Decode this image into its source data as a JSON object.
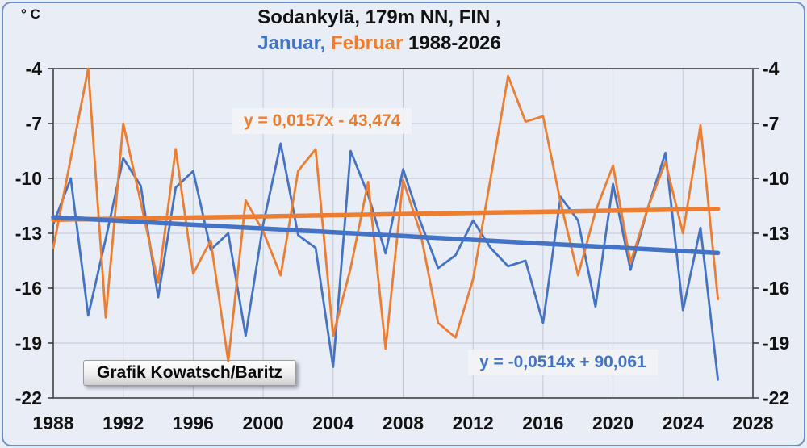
{
  "units_label": "° C",
  "title": {
    "line1": "Sodankylä, 179m NN, FIN ,",
    "part_januar": "Januar,",
    "part_februar": "Februar",
    "part_years": " 1988-2026"
  },
  "equations": {
    "februar": "y = 0,0157x - 43,474",
    "januar": "y = -0,0514x + 90,061"
  },
  "credit_label": "Grafik Kowatsch/Baritz",
  "colors": {
    "januar": "#4472C4",
    "februar": "#ED7D31",
    "background": "#E9EDF6",
    "grid": "#C3C8D2",
    "plot_border": "#3F3F3F",
    "text": "#121212",
    "frame": "#6C8FCB"
  },
  "chart_data": {
    "type": "line",
    "title": "Sodankylä, 179m NN, FIN , Januar, Februar 1988-2026",
    "ylabel": "° C",
    "xlabel": "",
    "grid": true,
    "legend_position": "none",
    "xlim": [
      1988,
      2028
    ],
    "ylim": [
      -22,
      -4
    ],
    "x_ticks": [
      1988,
      1992,
      1996,
      2000,
      2004,
      2008,
      2012,
      2016,
      2020,
      2024,
      2028
    ],
    "y_ticks": [
      -4,
      -7,
      -10,
      -13,
      -16,
      -19,
      -22
    ],
    "x": [
      1988,
      1989,
      1990,
      1991,
      1992,
      1993,
      1994,
      1995,
      1996,
      1997,
      1998,
      1999,
      2000,
      2001,
      2002,
      2003,
      2004,
      2005,
      2006,
      2007,
      2008,
      2009,
      2010,
      2011,
      2012,
      2013,
      2014,
      2015,
      2016,
      2017,
      2018,
      2019,
      2020,
      2021,
      2022,
      2023,
      2024,
      2025,
      2026
    ],
    "series": [
      {
        "name": "Januar",
        "color": "#4472C4",
        "values": [
          -12.5,
          -10.0,
          -17.5,
          -13.3,
          -8.9,
          -10.4,
          -16.5,
          -10.5,
          -9.6,
          -13.9,
          -13.0,
          -18.6,
          -12.5,
          -8.1,
          -13.1,
          -13.8,
          -20.3,
          -8.5,
          -10.9,
          -14.1,
          -9.5,
          -12.4,
          -14.9,
          -14.2,
          -12.3,
          -13.8,
          -14.8,
          -14.5,
          -17.9,
          -11.0,
          -12.3,
          -17.0,
          -10.3,
          -15.0,
          -11.6,
          -8.6,
          -17.2,
          -12.7,
          -21.0
        ]
      },
      {
        "name": "Februar",
        "color": "#ED7D31",
        "values": [
          -13.8,
          -8.9,
          -4.0,
          -17.6,
          -7.0,
          -11.3,
          -15.7,
          -8.4,
          -15.2,
          -13.4,
          -20.0,
          -11.2,
          -12.9,
          -15.3,
          -9.6,
          -8.4,
          -18.6,
          -14.9,
          -10.2,
          -19.3,
          -10.1,
          -13.0,
          -17.9,
          -18.7,
          -15.5,
          -10.0,
          -4.4,
          -6.9,
          -6.6,
          -11.3,
          -15.3,
          -11.8,
          -9.3,
          -14.6,
          -11.6,
          -9.1,
          -13.0,
          -7.1,
          -16.6
        ]
      }
    ],
    "trend_lines": [
      {
        "name": "Februar trend",
        "equation": "y = 0,0157x - 43,474",
        "slope": 0.0157,
        "intercept": -43.474,
        "color": "#ED7D31",
        "x_start": 1988,
        "x_end": 2026
      },
      {
        "name": "Januar trend",
        "equation": "y = -0,0514x + 90,061",
        "slope": -0.0514,
        "intercept": 90.061,
        "color": "#4472C4",
        "x_start": 1988,
        "x_end": 2026
      }
    ]
  }
}
